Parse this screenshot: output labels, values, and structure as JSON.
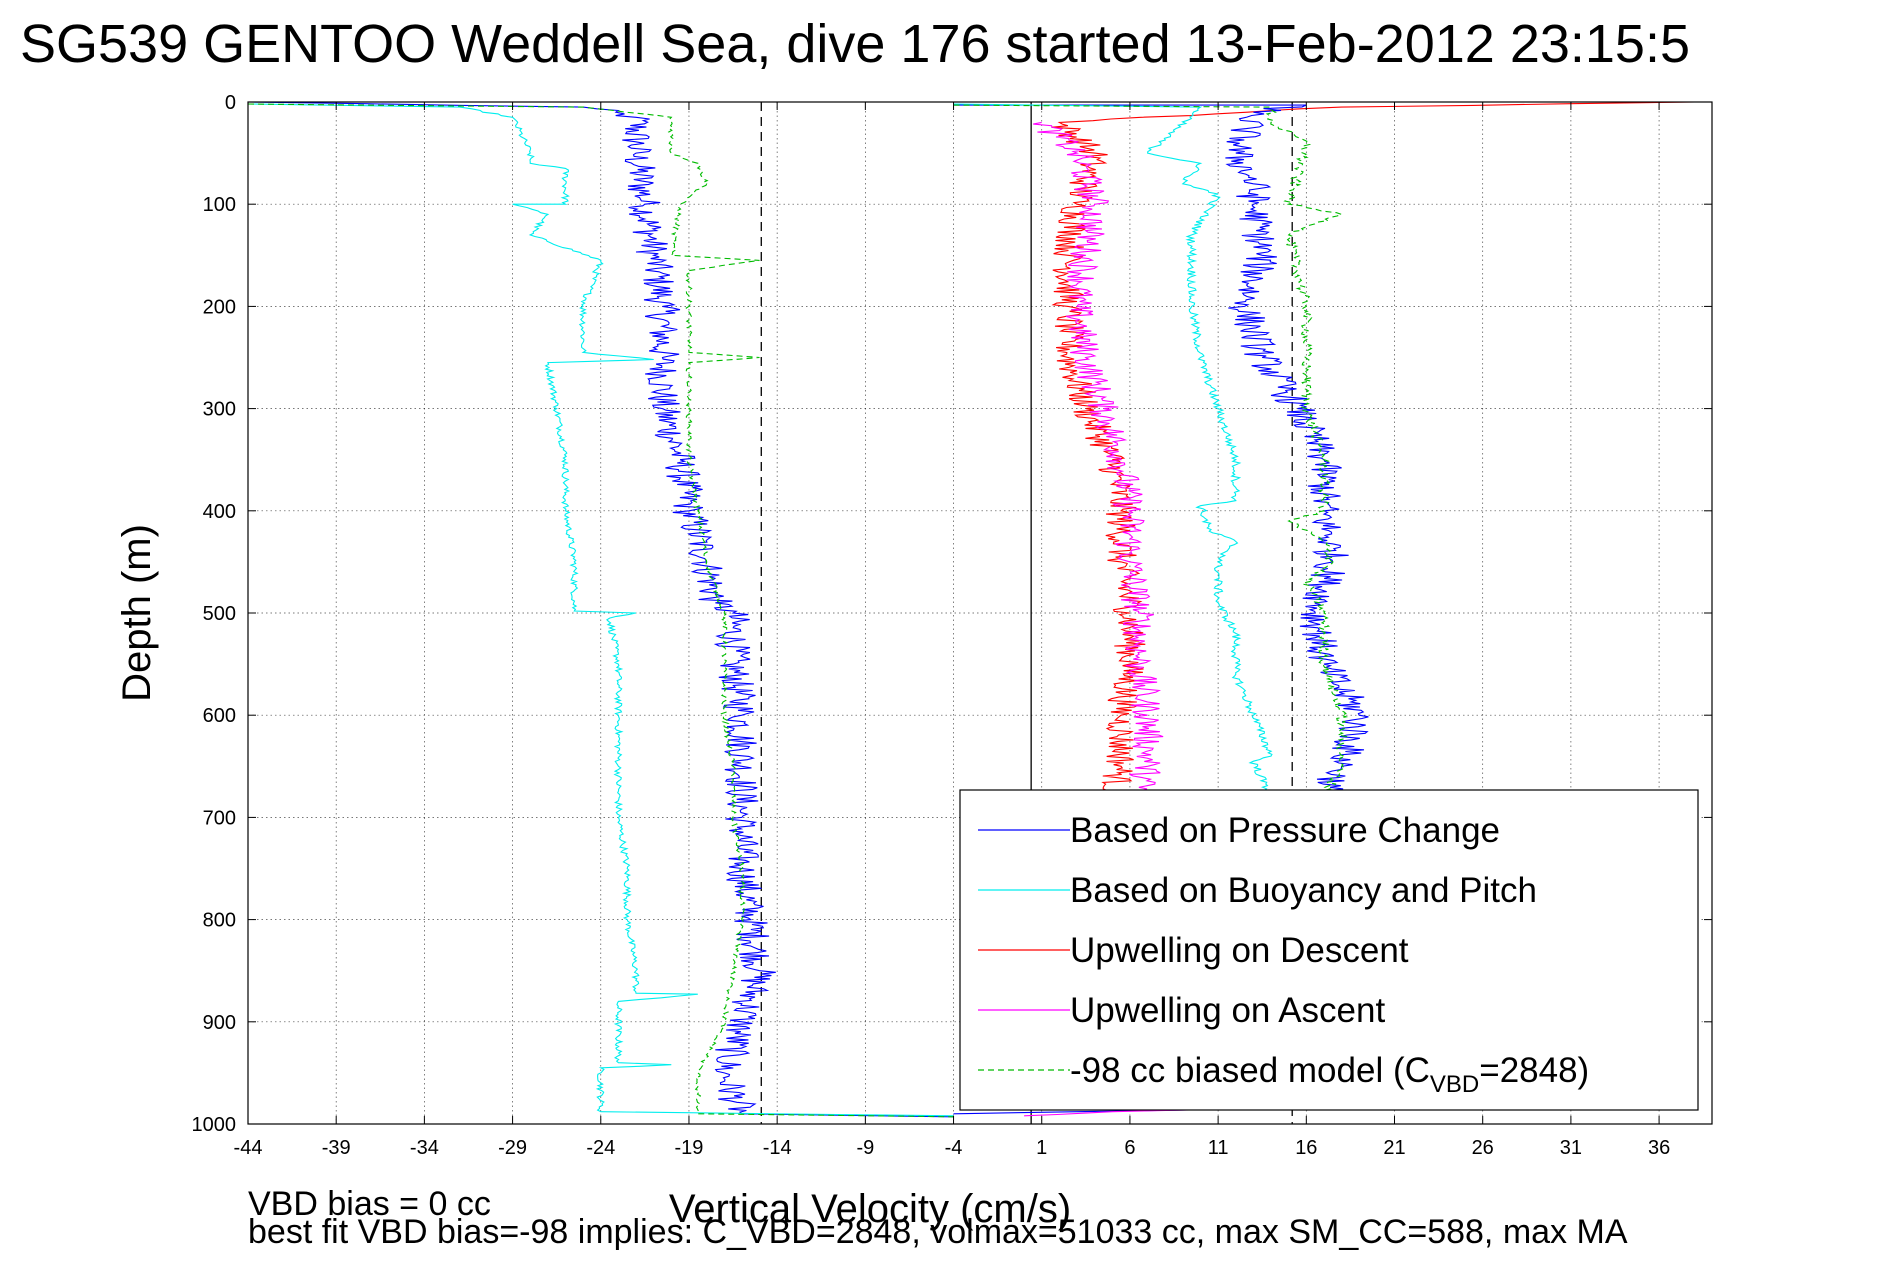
{
  "chart_data": {
    "type": "line",
    "title": "SG539 GENTOO Weddell Sea, dive 176 started 13-Feb-2012 23:15:5",
    "xlabel": "Vertical Velocity (cm/s)",
    "ylabel": "Depth (m)",
    "xlim": [
      -44,
      39
    ],
    "ylim": [
      0,
      1000
    ],
    "y_reversed": true,
    "grid": true,
    "xticks": [
      -44,
      -39,
      -34,
      -29,
      -24,
      -19,
      -14,
      -9,
      -4,
      1,
      6,
      11,
      16,
      21,
      26,
      31,
      36
    ],
    "yticks": [
      0,
      100,
      200,
      300,
      400,
      500,
      600,
      700,
      800,
      900,
      1000
    ],
    "reference_lines": [
      {
        "x": -14.9,
        "style": "dashed",
        "color": "#000000"
      },
      {
        "x": 0.4,
        "style": "solid",
        "color": "#000000"
      },
      {
        "x": 15.2,
        "style": "dashed",
        "color": "#000000"
      }
    ],
    "legend_position": "bottom-right",
    "series": [
      {
        "name": "Based on Pressure Change",
        "color": "#0000ff",
        "style": "solid",
        "noise": 1.0,
        "points": [
          [
            -44,
            0
          ],
          [
            -25,
            5
          ],
          [
            -22,
            15
          ],
          [
            -22,
            50
          ],
          [
            -21.5,
            100
          ],
          [
            -21,
            150
          ],
          [
            -20.5,
            200
          ],
          [
            -20.5,
            250
          ],
          [
            -20.5,
            300
          ],
          [
            -19.5,
            350
          ],
          [
            -19,
            400
          ],
          [
            -18,
            450
          ],
          [
            -17.5,
            490
          ],
          [
            -16.5,
            500
          ],
          [
            -16.5,
            550
          ],
          [
            -16,
            600
          ],
          [
            -16,
            650
          ],
          [
            -16,
            700
          ],
          [
            -16,
            750
          ],
          [
            -15.5,
            800
          ],
          [
            -15,
            850
          ],
          [
            -16,
            900
          ],
          [
            -17,
            950
          ],
          [
            -16,
            990
          ],
          [
            -4,
            993
          ]
        ]
      },
      {
        "name": "Based on Buoyancy and Pitch",
        "color": "#00eeee",
        "style": "solid",
        "noise": 0.2,
        "points": [
          [
            -44,
            2
          ],
          [
            -32,
            5
          ],
          [
            -29,
            15
          ],
          [
            -28,
            50
          ],
          [
            -28,
            60
          ],
          [
            -26,
            65
          ],
          [
            -26,
            100
          ],
          [
            -29,
            100
          ],
          [
            -27,
            110
          ],
          [
            -28,
            130
          ],
          [
            -24,
            155
          ],
          [
            -25,
            200
          ],
          [
            -25,
            245
          ],
          [
            -21,
            252
          ],
          [
            -27,
            255
          ],
          [
            -26.5,
            300
          ],
          [
            -26,
            350
          ],
          [
            -26,
            400
          ],
          [
            -25.5,
            450
          ],
          [
            -25.5,
            498
          ],
          [
            -22,
            500
          ],
          [
            -23.5,
            505
          ],
          [
            -23,
            550
          ],
          [
            -23,
            600
          ],
          [
            -23,
            650
          ],
          [
            -23,
            700
          ],
          [
            -22.5,
            750
          ],
          [
            -22.5,
            800
          ],
          [
            -22,
            850
          ],
          [
            -22,
            872
          ],
          [
            -18.5,
            873
          ],
          [
            -23,
            880
          ],
          [
            -23,
            940
          ],
          [
            -20,
            942
          ],
          [
            -24,
            945
          ],
          [
            -24,
            988
          ],
          [
            -4,
            992
          ]
        ]
      },
      {
        "name": "Upwelling on Descent",
        "color": "#ff0000",
        "style": "solid",
        "noise": 0.9,
        "points": [
          [
            38,
            0
          ],
          [
            18,
            5
          ],
          [
            2,
            20
          ],
          [
            4,
            50
          ],
          [
            3,
            100
          ],
          [
            2.5,
            150
          ],
          [
            2.5,
            200
          ],
          [
            2.5,
            250
          ],
          [
            3.5,
            300
          ],
          [
            5,
            350
          ],
          [
            5.5,
            400
          ],
          [
            5.5,
            450
          ],
          [
            6,
            500
          ],
          [
            6,
            550
          ],
          [
            5.5,
            600
          ],
          [
            5.5,
            650
          ],
          [
            5,
            680
          ]
        ]
      },
      {
        "name": "Upwelling on Ascent",
        "color": "#ff00ff",
        "style": "solid",
        "noise": 0.9,
        "points": [
          [
            1,
            20
          ],
          [
            3,
            50
          ],
          [
            4,
            100
          ],
          [
            3.5,
            150
          ],
          [
            3,
            200
          ],
          [
            3.5,
            250
          ],
          [
            4.5,
            300
          ],
          [
            5.5,
            350
          ],
          [
            6,
            400
          ],
          [
            6,
            450
          ],
          [
            6.5,
            500
          ],
          [
            6.5,
            550
          ],
          [
            7,
            600
          ],
          [
            7,
            650
          ],
          [
            6.5,
            680
          ]
        ]
      },
      {
        "name": "-98 cc biased model (C_VBD=2848)",
        "color": "#00bb00",
        "style": "dashed",
        "noise": 0.15,
        "points": [
          [
            -44,
            2
          ],
          [
            -25,
            5
          ],
          [
            -20,
            15
          ],
          [
            -20,
            50
          ],
          [
            -18.5,
            60
          ],
          [
            -18,
            80
          ],
          [
            -19.5,
            100
          ],
          [
            -20,
            150
          ],
          [
            -15,
            155
          ],
          [
            -19,
            165
          ],
          [
            -19,
            200
          ],
          [
            -19,
            245
          ],
          [
            -15,
            250
          ],
          [
            -19,
            255
          ],
          [
            -19,
            300
          ],
          [
            -19,
            350
          ],
          [
            -18.5,
            400
          ],
          [
            -18,
            450
          ],
          [
            -17,
            500
          ],
          [
            -17,
            550
          ],
          [
            -17,
            600
          ],
          [
            -16.5,
            650
          ],
          [
            -16.5,
            700
          ],
          [
            -16,
            750
          ],
          [
            -16,
            800
          ],
          [
            -16.5,
            850
          ],
          [
            -17,
            900
          ],
          [
            -18.5,
            950
          ],
          [
            -18.5,
            990
          ],
          [
            -4,
            993
          ]
        ]
      },
      {
        "color": "#0000ff",
        "style": "solid",
        "noise": 1.0,
        "points": [
          [
            -4,
            3
          ],
          [
            16,
            3
          ],
          [
            13,
            10
          ],
          [
            12,
            50
          ],
          [
            13,
            80
          ],
          [
            13,
            100
          ],
          [
            13.5,
            150
          ],
          [
            12.5,
            200
          ],
          [
            13.5,
            250
          ],
          [
            15.5,
            300
          ],
          [
            17,
            350
          ],
          [
            17,
            400
          ],
          [
            17.5,
            450
          ],
          [
            16.5,
            500
          ],
          [
            17,
            550
          ],
          [
            19,
            600
          ],
          [
            18,
            650
          ],
          [
            17,
            680
          ]
        ]
      },
      {
        "color": "#00eeee",
        "style": "solid",
        "noise": 0.25,
        "points": [
          [
            -4,
            2
          ],
          [
            10,
            5
          ],
          [
            7,
            50
          ],
          [
            10,
            60
          ],
          [
            9,
            80
          ],
          [
            11,
            90
          ],
          [
            9.5,
            130
          ],
          [
            9.5,
            200
          ],
          [
            10,
            250
          ],
          [
            11,
            300
          ],
          [
            12,
            350
          ],
          [
            12,
            390
          ],
          [
            10,
            395
          ],
          [
            10.5,
            420
          ],
          [
            12,
            430
          ],
          [
            11,
            450
          ],
          [
            11,
            490
          ],
          [
            12,
            520
          ],
          [
            12,
            560
          ],
          [
            13,
            600
          ],
          [
            14,
            640
          ],
          [
            13,
            645
          ],
          [
            14,
            680
          ]
        ]
      },
      {
        "color": "#00bb00",
        "style": "dashed",
        "noise": 0.3,
        "points": [
          [
            -4,
            3
          ],
          [
            14,
            5
          ],
          [
            14,
            20
          ],
          [
            16,
            40
          ],
          [
            15,
            100
          ],
          [
            18,
            110
          ],
          [
            15,
            130
          ],
          [
            16,
            200
          ],
          [
            16,
            300
          ],
          [
            17,
            350
          ],
          [
            17,
            400
          ],
          [
            15,
            410
          ],
          [
            17,
            430
          ],
          [
            17.5,
            450
          ],
          [
            16,
            470
          ],
          [
            17,
            500
          ],
          [
            17,
            550
          ],
          [
            18,
            600
          ],
          [
            18,
            650
          ],
          [
            17,
            680
          ]
        ]
      },
      {
        "color": "#0000ff",
        "style": "solid",
        "noise": 0.3,
        "points": [
          [
            -4,
            990
          ],
          [
            10,
            986
          ],
          [
            14,
            980
          ]
        ]
      },
      {
        "color": "#ff00ff",
        "style": "solid",
        "noise": 0.3,
        "points": [
          [
            0,
            992
          ],
          [
            5,
            988
          ],
          [
            10,
            986
          ]
        ]
      }
    ],
    "legend": [
      {
        "label": "Based on Pressure Change",
        "color": "#0000ff",
        "style": "solid"
      },
      {
        "label": "Based on Buoyancy and Pitch",
        "color": "#00eeee",
        "style": "solid"
      },
      {
        "label": "Upwelling on Descent",
        "color": "#ff0000",
        "style": "solid"
      },
      {
        "label": "Upwelling on Ascent",
        "color": "#ff00ff",
        "style": "solid"
      },
      {
        "label_main": "-98 cc biased model (C",
        "label_sub": "VBD",
        "label_end": "=2848)",
        "color": "#00bb00",
        "style": "dashed"
      }
    ]
  },
  "footer": {
    "line1": "VBD bias = 0 cc",
    "line2": "best fit VBD bias=-98 implies: C_VBD=2848, volmax=51033 cc, max SM_CC=588, max MA"
  }
}
